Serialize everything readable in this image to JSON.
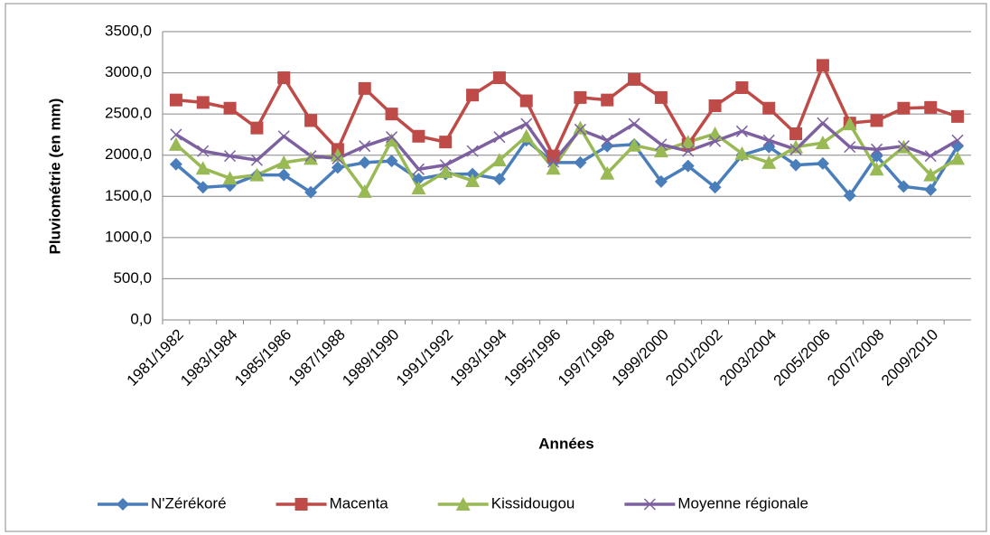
{
  "chart_data": {
    "type": "line",
    "xlabel": "Années",
    "ylabel": "Pluviométrie (en mm)",
    "categories": [
      "1981/1982",
      null,
      "1983/1984",
      null,
      "1985/1986",
      null,
      "1987/1988",
      null,
      "1989/1990",
      null,
      "1991/1992",
      null,
      "1993/1994",
      null,
      "1995/1996",
      null,
      "1997/1998",
      null,
      "1999/2000",
      null,
      "2001/2002",
      null,
      "2003/2004",
      null,
      "2005/2006",
      null,
      "2007/2008",
      null,
      "2009/2010",
      null
    ],
    "series": [
      {
        "name": "N'Zérékoré",
        "color": "#4a7ebb",
        "marker": "diamond",
        "values": [
          1890,
          1610,
          1630,
          1760,
          1760,
          1550,
          1850,
          1910,
          1930,
          1710,
          1770,
          1770,
          1710,
          2180,
          1910,
          1910,
          2110,
          2130,
          1680,
          1870,
          1610,
          2000,
          2100,
          1880,
          1900,
          1510,
          1990,
          1620,
          1580,
          2110
        ]
      },
      {
        "name": "Macenta",
        "color": "#be4b48",
        "marker": "square",
        "values": [
          2670,
          2640,
          2570,
          2330,
          2940,
          2420,
          2070,
          2810,
          2500,
          2230,
          2160,
          2730,
          2940,
          2660,
          1990,
          2700,
          2670,
          2920,
          2700,
          2130,
          2600,
          2820,
          2570,
          2260,
          3090,
          2390,
          2420,
          2570,
          2580,
          2470
        ]
      },
      {
        "name": "Kissidougou",
        "color": "#98b954",
        "marker": "triangle",
        "values": [
          2130,
          1840,
          1720,
          1760,
          1910,
          1960,
          2000,
          1560,
          2180,
          1600,
          1800,
          1690,
          1940,
          2230,
          1840,
          2330,
          1780,
          2120,
          2050,
          2160,
          2260,
          2020,
          1910,
          2100,
          2150,
          2380,
          1830,
          2100,
          1760,
          1960
        ]
      },
      {
        "name": "Moyenne régionale",
        "color": "#7d60a0",
        "marker": "x",
        "values": [
          2250,
          2050,
          1990,
          1940,
          2230,
          1990,
          1960,
          2110,
          2220,
          1830,
          1880,
          2050,
          2220,
          2380,
          1920,
          2310,
          2180,
          2380,
          2130,
          2050,
          2170,
          2290,
          2180,
          2070,
          2390,
          2100,
          2070,
          2110,
          1990,
          2180
        ]
      }
    ],
    "ylim": [
      0,
      3500
    ],
    "yticks": [
      {
        "value": 0,
        "label": "0,0"
      },
      {
        "value": 500,
        "label": "500,0"
      },
      {
        "value": 1000,
        "label": "1000,0"
      },
      {
        "value": 1500,
        "label": "1500,0"
      },
      {
        "value": 2000,
        "label": "2000,0"
      },
      {
        "value": 2500,
        "label": "2500,0"
      },
      {
        "value": 3000,
        "label": "3000,0"
      },
      {
        "value": 3500,
        "label": "3500,0"
      }
    ],
    "grid": true,
    "legend": "bottom"
  }
}
